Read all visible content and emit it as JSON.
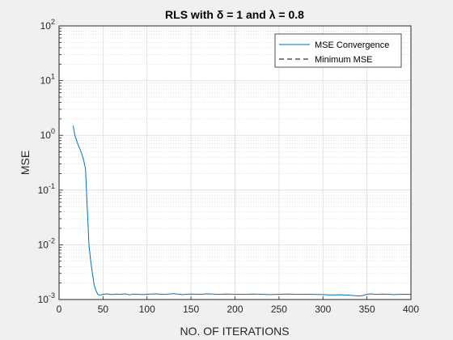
{
  "chart_data": {
    "type": "line",
    "title": "RLS with δ = 1 and λ = 0.8",
    "xlabel": "NO. OF ITERATIONS",
    "ylabel": "MSE",
    "xlim": [
      0,
      400
    ],
    "ylim": [
      0.001,
      100
    ],
    "yscale": "log",
    "xticks": [
      "0",
      "50",
      "100",
      "150",
      "200",
      "250",
      "300",
      "350",
      "400"
    ],
    "yticks": [
      {
        "base": "10",
        "exp": "-3"
      },
      {
        "base": "10",
        "exp": "-2"
      },
      {
        "base": "10",
        "exp": "-1"
      },
      {
        "base": "10",
        "exp": "0"
      },
      {
        "base": "10",
        "exp": "1"
      },
      {
        "base": "10",
        "exp": "2"
      }
    ],
    "grid": "on, major and minor",
    "legend_position": "top-right",
    "series": [
      {
        "name": "MSE Convergence",
        "color": "#0072bd",
        "style": "solid",
        "x": [
          16,
          18,
          20,
          22,
          24,
          26,
          28,
          30,
          32,
          34,
          36,
          38,
          40,
          42,
          44,
          46,
          48,
          50,
          55,
          60,
          65,
          70,
          75,
          80,
          85,
          90,
          95,
          100,
          110,
          120,
          130,
          140,
          150,
          160,
          170,
          180,
          190,
          200,
          210,
          220,
          230,
          240,
          250,
          260,
          270,
          280,
          290,
          300,
          310,
          320,
          330,
          335,
          340,
          345,
          350,
          355,
          360,
          370,
          380,
          390,
          400
        ],
        "y": [
          1.5,
          1.0,
          0.8,
          0.65,
          0.55,
          0.45,
          0.35,
          0.25,
          0.05,
          0.01,
          0.005,
          0.003,
          0.0018,
          0.00145,
          0.00125,
          0.0012,
          0.00122,
          0.00125,
          0.00127,
          0.00123,
          0.00126,
          0.00124,
          0.00127,
          0.00122,
          0.00126,
          0.00125,
          0.00123,
          0.00125,
          0.00127,
          0.00124,
          0.00128,
          0.00123,
          0.00126,
          0.00125,
          0.00127,
          0.00124,
          0.00126,
          0.00125,
          0.00124,
          0.00126,
          0.00125,
          0.00123,
          0.00125,
          0.00126,
          0.00124,
          0.00125,
          0.00124,
          0.00123,
          0.00121,
          0.00122,
          0.0012,
          0.00118,
          0.00116,
          0.00118,
          0.00125,
          0.00127,
          0.00124,
          0.00126,
          0.00123,
          0.00125,
          0.00124
        ]
      },
      {
        "name": "Minimum MSE",
        "color": "#000000",
        "style": "dashed",
        "x": [
          0,
          400
        ],
        "y": [
          0.001,
          0.001
        ]
      }
    ]
  }
}
